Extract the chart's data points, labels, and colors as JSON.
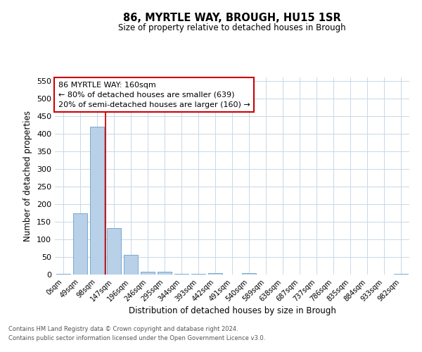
{
  "title": "86, MYRTLE WAY, BROUGH, HU15 1SR",
  "subtitle": "Size of property relative to detached houses in Brough",
  "xlabel": "Distribution of detached houses by size in Brough",
  "ylabel": "Number of detached properties",
  "bar_color": "#b8d0e8",
  "bar_edge_color": "#6a9fc8",
  "background_color": "#ffffff",
  "grid_color": "#c8d8e8",
  "categories": [
    "0sqm",
    "49sqm",
    "98sqm",
    "147sqm",
    "196sqm",
    "246sqm",
    "295sqm",
    "344sqm",
    "393sqm",
    "442sqm",
    "491sqm",
    "540sqm",
    "589sqm",
    "638sqm",
    "687sqm",
    "737sqm",
    "786sqm",
    "835sqm",
    "884sqm",
    "933sqm",
    "982sqm"
  ],
  "values": [
    3,
    175,
    420,
    133,
    57,
    8,
    8,
    2,
    2,
    4,
    0,
    5,
    0,
    0,
    0,
    0,
    0,
    0,
    0,
    0,
    3
  ],
  "ylim": [
    0,
    560
  ],
  "yticks": [
    0,
    50,
    100,
    150,
    200,
    250,
    300,
    350,
    400,
    450,
    500,
    550
  ],
  "property_line_x": 2.5,
  "annotation_text": "86 MYRTLE WAY: 160sqm\n← 80% of detached houses are smaller (639)\n20% of semi-detached houses are larger (160) →",
  "annotation_box_color": "#ffffff",
  "annotation_border_color": "#cc0000",
  "footnote_line1": "Contains HM Land Registry data © Crown copyright and database right 2024.",
  "footnote_line2": "Contains public sector information licensed under the Open Government Licence v3.0."
}
